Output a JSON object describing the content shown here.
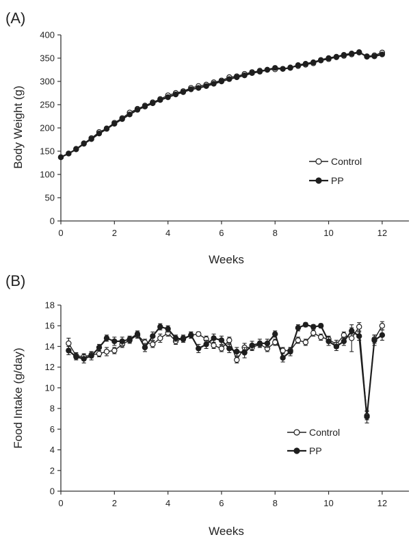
{
  "chart_data": [
    {
      "type": "line",
      "panel_label": "(A)",
      "xlabel": "Weeks",
      "ylabel": "Body Weight (g)",
      "xlim": [
        0,
        13
      ],
      "ylim": [
        0,
        400
      ],
      "xticks": [
        0,
        2,
        4,
        6,
        8,
        10,
        12
      ],
      "yticks": [
        0,
        50,
        100,
        150,
        200,
        250,
        300,
        350,
        400
      ],
      "legend_position": "center-right",
      "series": [
        {
          "name": "Control",
          "marker": "open-circle",
          "x": [
            0,
            0.29,
            0.57,
            0.86,
            1.14,
            1.43,
            1.71,
            2.0,
            2.29,
            2.57,
            2.86,
            3.14,
            3.43,
            3.71,
            4.0,
            4.29,
            4.57,
            4.86,
            5.14,
            5.43,
            5.71,
            6.0,
            6.29,
            6.57,
            6.86,
            7.14,
            7.43,
            7.71,
            8.0,
            8.29,
            8.57,
            8.86,
            9.14,
            9.43,
            9.71,
            10.0,
            10.29,
            10.57,
            10.86,
            11.14,
            11.43,
            11.71,
            12.0
          ],
          "values": [
            137,
            145,
            155,
            167,
            178,
            191,
            199,
            211,
            221,
            233,
            241,
            248,
            255,
            262,
            270,
            275,
            279,
            286,
            290,
            293,
            298,
            302,
            309,
            311,
            316,
            320,
            323,
            325,
            326,
            327,
            330,
            333,
            336,
            339,
            345,
            348,
            352,
            355,
            358,
            362,
            354,
            356,
            362
          ]
        },
        {
          "name": "PP",
          "marker": "filled-circle",
          "x": [
            0,
            0.29,
            0.57,
            0.86,
            1.14,
            1.43,
            1.71,
            2.0,
            2.29,
            2.57,
            2.86,
            3.14,
            3.43,
            3.71,
            4.0,
            4.29,
            4.57,
            4.86,
            5.14,
            5.43,
            5.71,
            6.0,
            6.29,
            6.57,
            6.86,
            7.14,
            7.43,
            7.71,
            8.0,
            8.29,
            8.57,
            8.86,
            9.14,
            9.43,
            9.71,
            10.0,
            10.29,
            10.57,
            10.86,
            11.14,
            11.43,
            11.71,
            12.0
          ],
          "values": [
            137,
            145,
            154,
            166,
            176,
            188,
            198,
            209,
            219,
            229,
            239,
            246,
            253,
            260,
            266,
            272,
            277,
            283,
            286,
            290,
            295,
            300,
            305,
            309,
            313,
            318,
            321,
            325,
            329,
            327,
            329,
            335,
            338,
            341,
            346,
            350,
            353,
            357,
            360,
            363,
            353,
            354,
            358
          ]
        }
      ]
    },
    {
      "type": "line",
      "panel_label": "(B)",
      "xlabel": "Weeks",
      "ylabel": "Food Intake (g/day)",
      "xlim": [
        0,
        13
      ],
      "ylim": [
        0,
        18
      ],
      "xticks": [
        0,
        2,
        4,
        6,
        8,
        10,
        12
      ],
      "yticks": [
        0,
        2,
        4,
        6,
        8,
        10,
        12,
        14,
        16,
        18
      ],
      "legend_position": "lower-right",
      "error_bars": true,
      "series": [
        {
          "name": "Control",
          "marker": "open-circle",
          "x": [
            0.29,
            0.57,
            0.86,
            1.14,
            1.43,
            1.71,
            2.0,
            2.29,
            2.57,
            2.86,
            3.14,
            3.43,
            3.71,
            4.0,
            4.29,
            4.57,
            4.86,
            5.14,
            5.43,
            5.71,
            6.0,
            6.29,
            6.57,
            6.86,
            7.14,
            7.43,
            7.71,
            8.0,
            8.29,
            8.57,
            8.86,
            9.14,
            9.43,
            9.71,
            10.0,
            10.29,
            10.57,
            10.86,
            11.14,
            11.43,
            11.71,
            12.0
          ],
          "values": [
            14.3,
            13.1,
            13.0,
            13.2,
            13.3,
            13.5,
            13.6,
            14.2,
            14.6,
            15.1,
            14.4,
            14.2,
            14.8,
            15.3,
            14.5,
            14.8,
            15.1,
            15.2,
            14.7,
            14.1,
            13.8,
            14.6,
            12.7,
            13.9,
            13.9,
            14.2,
            13.8,
            14.4,
            13.6,
            13.6,
            14.6,
            14.4,
            15.3,
            14.9,
            14.7,
            14.2,
            15.1,
            14.8,
            15.9,
            7.3,
            14.7,
            16.0
          ],
          "errors": [
            0.5,
            0.3,
            0.3,
            0.3,
            0.3,
            0.4,
            0.3,
            0.3,
            0.3,
            0.3,
            0.3,
            0.3,
            0.4,
            0.3,
            0.3,
            0.3,
            0.3,
            0.2,
            0.3,
            0.3,
            0.3,
            0.3,
            0.3,
            0.4,
            0.3,
            0.3,
            0.3,
            0.3,
            0.3,
            0.3,
            0.3,
            0.3,
            0.3,
            0.3,
            0.3,
            0.4,
            0.3,
            1.3,
            0.4,
            0.4,
            0.4,
            0.4
          ]
        },
        {
          "name": "PP",
          "marker": "filled-circle",
          "x": [
            0.29,
            0.57,
            0.86,
            1.14,
            1.43,
            1.71,
            2.0,
            2.29,
            2.57,
            2.86,
            3.14,
            3.43,
            3.71,
            4.0,
            4.29,
            4.57,
            4.86,
            5.14,
            5.43,
            5.71,
            6.0,
            6.29,
            6.57,
            6.86,
            7.14,
            7.43,
            7.71,
            8.0,
            8.29,
            8.57,
            8.86,
            9.14,
            9.43,
            9.71,
            10.0,
            10.29,
            10.57,
            10.86,
            11.14,
            11.43,
            11.71,
            12.0
          ],
          "values": [
            13.6,
            13.0,
            12.8,
            13.1,
            13.9,
            14.8,
            14.5,
            14.5,
            14.7,
            15.2,
            13.9,
            15.0,
            15.9,
            15.7,
            14.8,
            14.7,
            15.1,
            13.8,
            14.2,
            14.8,
            14.6,
            13.8,
            13.5,
            13.4,
            14.1,
            14.3,
            14.3,
            15.2,
            12.9,
            13.5,
            15.8,
            16.1,
            15.9,
            16.0,
            14.5,
            14.0,
            14.5,
            15.5,
            15.0,
            7.2,
            14.6,
            15.1
          ],
          "errors": [
            0.4,
            0.3,
            0.4,
            0.4,
            0.3,
            0.3,
            0.4,
            0.4,
            0.3,
            0.3,
            0.4,
            0.4,
            0.3,
            0.3,
            0.3,
            0.3,
            0.3,
            0.4,
            0.4,
            0.4,
            0.4,
            0.4,
            0.4,
            0.5,
            0.4,
            0.4,
            0.4,
            0.3,
            0.4,
            0.4,
            0.3,
            0.2,
            0.2,
            0.2,
            0.4,
            0.4,
            0.4,
            0.3,
            0.4,
            0.6,
            0.5,
            0.5
          ]
        }
      ]
    }
  ]
}
